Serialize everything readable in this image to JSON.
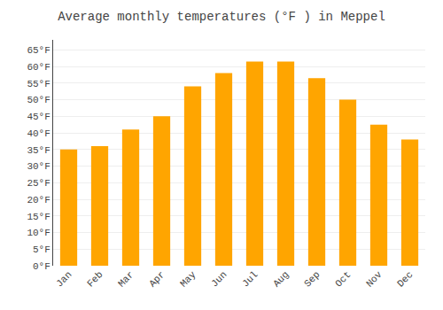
{
  "chart_data": {
    "type": "bar",
    "title": "Average monthly temperatures (°F ) in Meppel",
    "categories": [
      "Jan",
      "Feb",
      "Mar",
      "Apr",
      "May",
      "Jun",
      "Jul",
      "Aug",
      "Sep",
      "Oct",
      "Nov",
      "Dec"
    ],
    "values": [
      35,
      36,
      41,
      45,
      54,
      58,
      61.5,
      61.5,
      56.5,
      50,
      42.5,
      38
    ],
    "color": "#FFA500",
    "ylim": [
      0,
      68
    ],
    "yticks": [
      {
        "value": 0,
        "label": "0°F"
      },
      {
        "value": 5,
        "label": "5°F"
      },
      {
        "value": 10,
        "label": "10°F"
      },
      {
        "value": 15,
        "label": "15°F"
      },
      {
        "value": 20,
        "label": "20°F"
      },
      {
        "value": 25,
        "label": "25°F"
      },
      {
        "value": 30,
        "label": "30°F"
      },
      {
        "value": 35,
        "label": "35°F"
      },
      {
        "value": 40,
        "label": "40°F"
      },
      {
        "value": 45,
        "label": "45°F"
      },
      {
        "value": 50,
        "label": "50°F"
      },
      {
        "value": 55,
        "label": "55°F"
      },
      {
        "value": 60,
        "label": "60°F"
      },
      {
        "value": 65,
        "label": "65°F"
      }
    ],
    "grid": true
  }
}
